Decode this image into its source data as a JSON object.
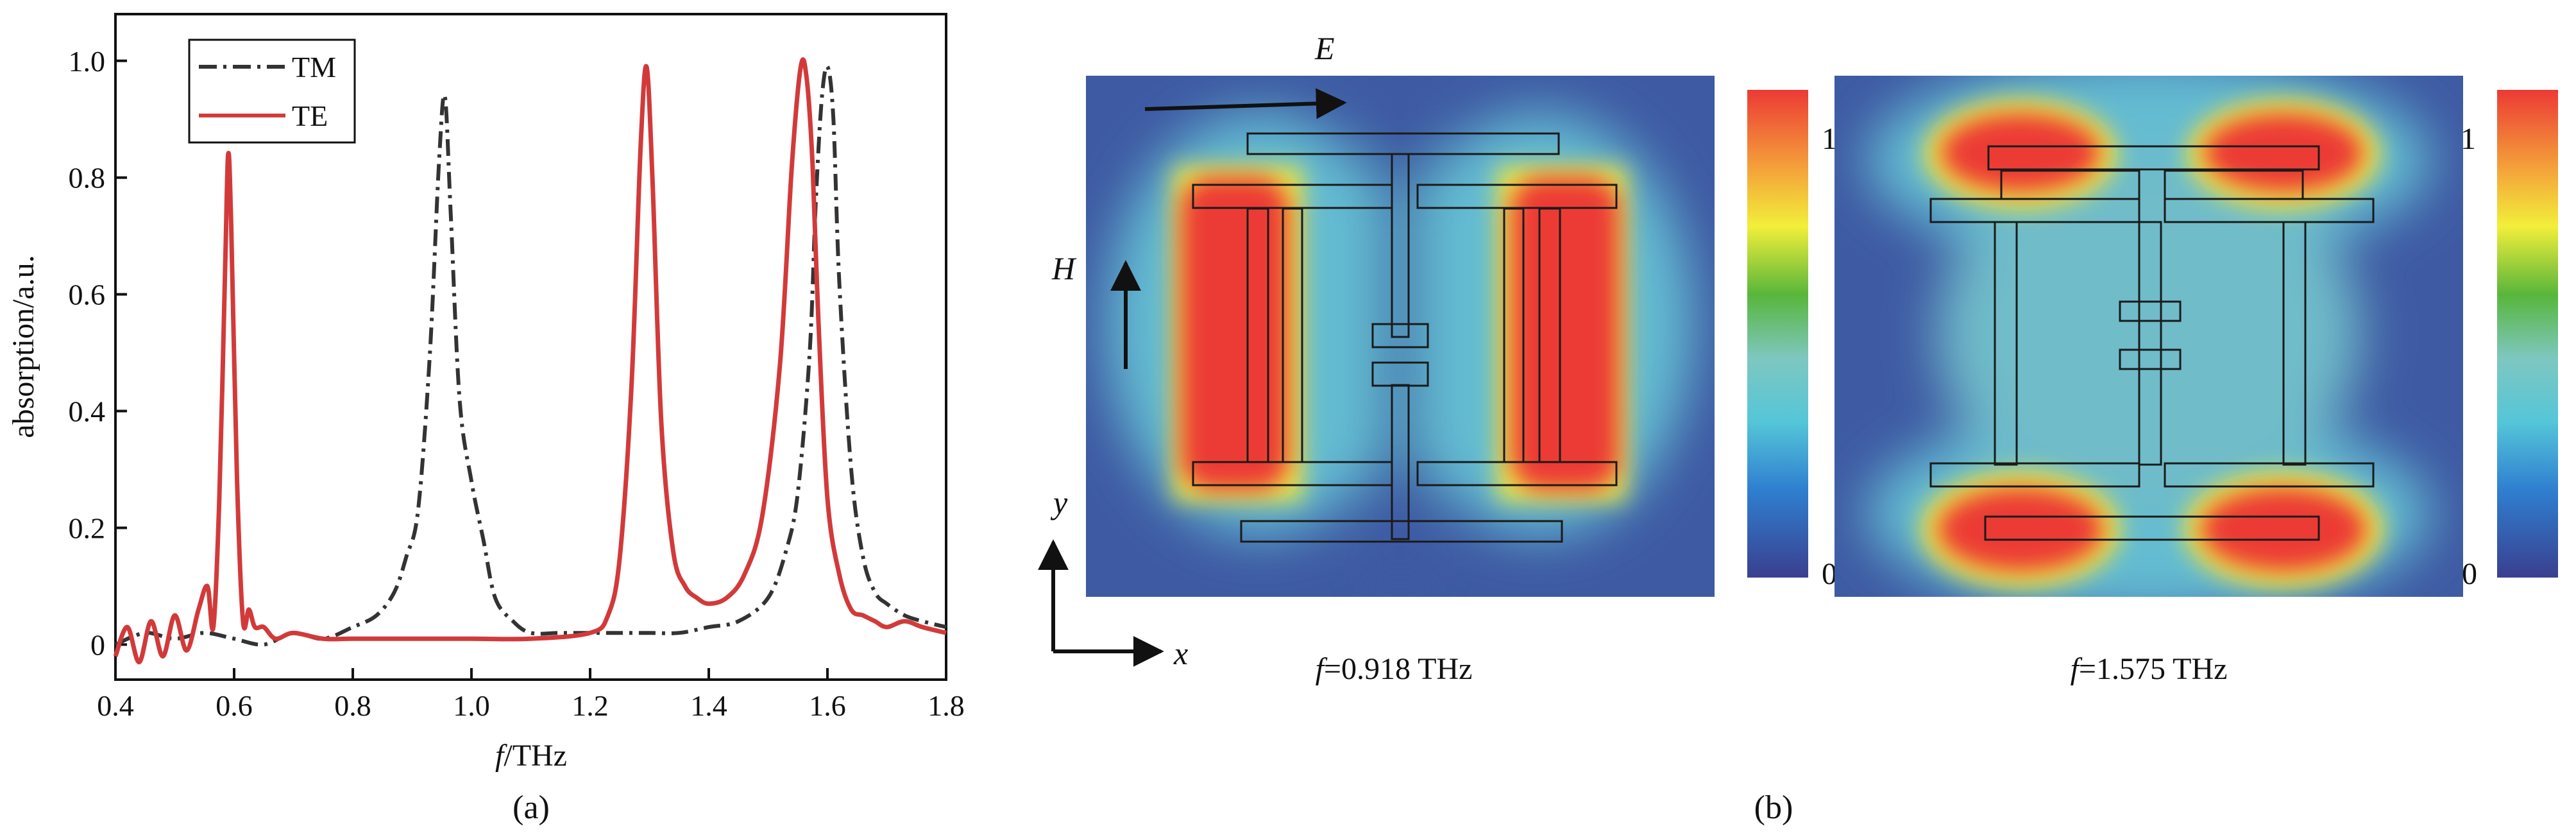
{
  "chart_data": [
    {
      "type": "line",
      "panel_label": "(a)",
      "xlabel_var": "f",
      "xlabel_unit": "/THz",
      "ylabel": "absorption/a.u.",
      "xlim": [
        0.4,
        1.8
      ],
      "ylim": [
        -0.06,
        1.08
      ],
      "xticks": [
        "0.4",
        "0.6",
        "0.8",
        "1.0",
        "1.2",
        "1.4",
        "1.6",
        "1.8"
      ],
      "yticks": [
        "0",
        "0.2",
        "0.4",
        "0.6",
        "0.8",
        "1.0"
      ],
      "xtick_values": [
        0.4,
        0.6,
        0.8,
        1.0,
        1.2,
        1.4,
        1.6,
        1.8
      ],
      "ytick_values": [
        0,
        0.2,
        0.4,
        0.6,
        0.8,
        1.0
      ],
      "legend_position": "top-left",
      "grid": false,
      "series": [
        {
          "name": "TM",
          "color": "#333333",
          "style": "dash-dot",
          "x": [
            0.4,
            0.45,
            0.5,
            0.55,
            0.6,
            0.65,
            0.7,
            0.75,
            0.8,
            0.84,
            0.87,
            0.89,
            0.91,
            0.93,
            0.945,
            0.955,
            0.965,
            0.98,
            1.0,
            1.02,
            1.04,
            1.07,
            1.1,
            1.15,
            1.2,
            1.25,
            1.3,
            1.35,
            1.4,
            1.45,
            1.5,
            1.53,
            1.55,
            1.57,
            1.58,
            1.59,
            1.6,
            1.61,
            1.62,
            1.64,
            1.66,
            1.68,
            1.7,
            1.73,
            1.76,
            1.8
          ],
          "y": [
            0.0,
            0.02,
            0.01,
            0.02,
            0.01,
            0.0,
            0.02,
            0.01,
            0.03,
            0.05,
            0.09,
            0.15,
            0.23,
            0.5,
            0.82,
            0.94,
            0.74,
            0.42,
            0.28,
            0.18,
            0.08,
            0.04,
            0.02,
            0.02,
            0.02,
            0.02,
            0.02,
            0.02,
            0.03,
            0.04,
            0.08,
            0.16,
            0.26,
            0.5,
            0.75,
            0.93,
            0.99,
            0.9,
            0.62,
            0.3,
            0.15,
            0.09,
            0.07,
            0.05,
            0.04,
            0.03
          ]
        },
        {
          "name": "TE",
          "color": "#d23a3a",
          "style": "solid",
          "x": [
            0.4,
            0.42,
            0.44,
            0.46,
            0.48,
            0.5,
            0.52,
            0.54,
            0.555,
            0.565,
            0.575,
            0.585,
            0.59,
            0.595,
            0.605,
            0.615,
            0.625,
            0.635,
            0.65,
            0.67,
            0.7,
            0.75,
            0.8,
            0.9,
            1.0,
            1.1,
            1.2,
            1.23,
            1.25,
            1.27,
            1.285,
            1.295,
            1.305,
            1.32,
            1.34,
            1.36,
            1.38,
            1.4,
            1.43,
            1.46,
            1.49,
            1.52,
            1.54,
            1.555,
            1.565,
            1.575,
            1.585,
            1.6,
            1.62,
            1.64,
            1.66,
            1.68,
            1.7,
            1.73,
            1.76,
            1.8
          ],
          "y": [
            -0.02,
            0.03,
            -0.03,
            0.04,
            -0.02,
            0.05,
            -0.01,
            0.06,
            0.1,
            0.03,
            0.25,
            0.65,
            0.84,
            0.72,
            0.28,
            0.04,
            0.06,
            0.03,
            0.03,
            0.01,
            0.02,
            0.01,
            0.01,
            0.01,
            0.01,
            0.01,
            0.02,
            0.05,
            0.15,
            0.45,
            0.85,
            0.99,
            0.8,
            0.38,
            0.16,
            0.1,
            0.08,
            0.07,
            0.08,
            0.12,
            0.22,
            0.48,
            0.82,
            0.99,
            0.97,
            0.82,
            0.55,
            0.25,
            0.12,
            0.06,
            0.05,
            0.04,
            0.03,
            0.04,
            0.03,
            0.02
          ]
        }
      ]
    },
    {
      "type": "heatmap",
      "panel_label": "(b)",
      "colorbar_min": "0",
      "colorbar_max": "1",
      "colorbar_colors": [
        "#3a3f8f",
        "#2f7fd0",
        "#55c6d8",
        "#56b96a",
        "#58b63a",
        "#f2ef3a",
        "#f4a13a",
        "#ec3a35"
      ],
      "maps": [
        {
          "frequency_label_var": "f",
          "frequency_label_value": "=0.918 THz",
          "hot_spots": "outer vertical bars"
        },
        {
          "frequency_label_var": "f",
          "frequency_label_value": "=1.575 THz",
          "hot_spots": "top and bottom strips"
        }
      ],
      "field_labels": {
        "E": "E",
        "H": "H"
      },
      "axis_labels": {
        "x": "x",
        "y": "y"
      }
    }
  ]
}
